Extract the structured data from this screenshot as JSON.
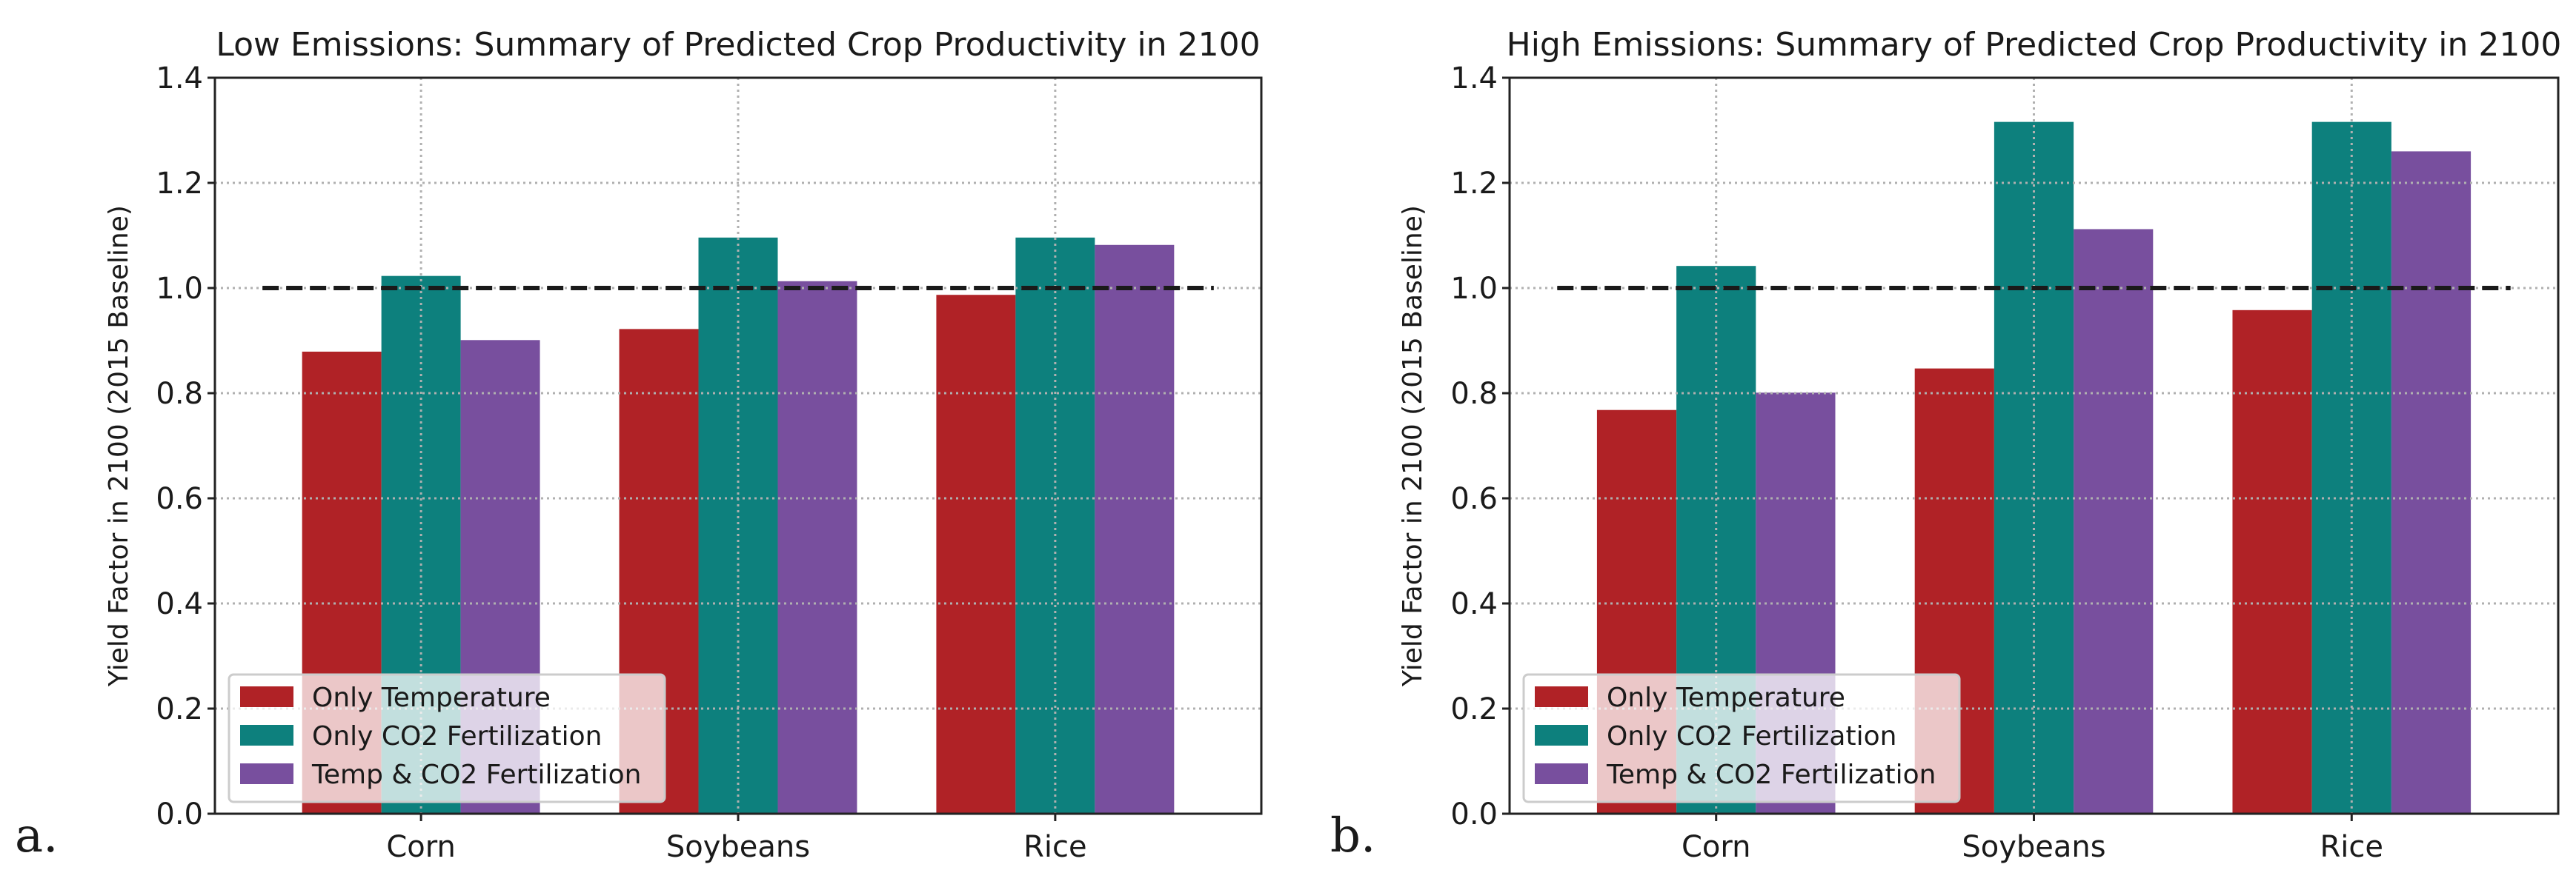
{
  "chart_data": [
    {
      "type": "bar",
      "panel_label": "a.",
      "title": "Low Emissions: Summary of Predicted Crop Productivity in 2100",
      "xlabel": "",
      "ylabel": "Yield Factor in 2100 (2015 Baseline)",
      "ylim": [
        0,
        1.4
      ],
      "yticks": [
        "0.0",
        "0.2",
        "0.4",
        "0.6",
        "0.8",
        "1.0",
        "1.2",
        "1.4"
      ],
      "categories": [
        "Corn",
        "Soybeans",
        "Rice"
      ],
      "grid": true,
      "legend_position": "lower-left",
      "baseline": 1.0,
      "series": [
        {
          "name": "Only Temperature",
          "color": "#b02226",
          "values": [
            0.879,
            0.922,
            0.987
          ]
        },
        {
          "name": "Only CO2 Fertilization",
          "color": "#0d807d",
          "values": [
            1.023,
            1.096,
            1.096
          ]
        },
        {
          "name": "Temp & CO2 Fertilization",
          "color": "#784f9e",
          "values": [
            0.901,
            1.013,
            1.082
          ]
        }
      ]
    },
    {
      "type": "bar",
      "panel_label": "b.",
      "title": "High Emissions: Summary of Predicted Crop Productivity in 2100",
      "xlabel": "",
      "ylabel": "Yield Factor in 2100 (2015 Baseline)",
      "ylim": [
        0,
        1.4
      ],
      "yticks": [
        "0.0",
        "0.2",
        "0.4",
        "0.6",
        "0.8",
        "1.0",
        "1.2",
        "1.4"
      ],
      "categories": [
        "Corn",
        "Soybeans",
        "Rice"
      ],
      "grid": true,
      "legend_position": "lower-left",
      "baseline": 1.0,
      "series": [
        {
          "name": "Only Temperature",
          "color": "#b02226",
          "values": [
            0.768,
            0.847,
            0.958
          ]
        },
        {
          "name": "Only CO2 Fertilization",
          "color": "#0d807d",
          "values": [
            1.042,
            1.316,
            1.316
          ]
        },
        {
          "name": "Temp & CO2 Fertilization",
          "color": "#784f9e",
          "values": [
            0.801,
            1.112,
            1.26
          ]
        }
      ]
    }
  ]
}
